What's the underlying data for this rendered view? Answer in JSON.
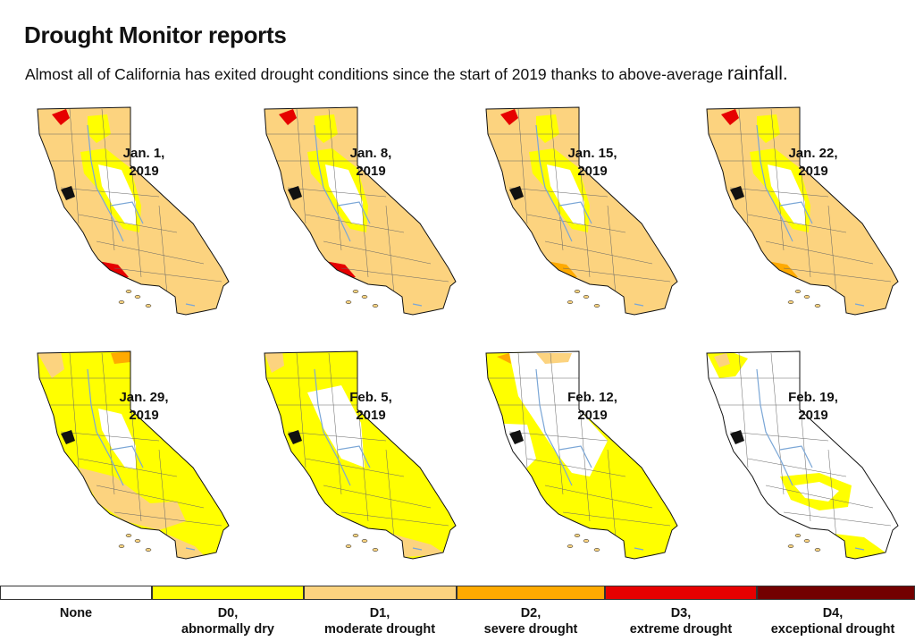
{
  "header": {
    "title": "Drought Monitor reports",
    "subtitle_main": "Almost all of California has exited drought conditions since the start of 2019 thanks to above-average",
    "subtitle_end": "rainfall."
  },
  "colors": {
    "none": "#ffffff",
    "d0": "#ffff00",
    "d1": "#fcd37f",
    "d2": "#ffaa00",
    "d3": "#e60000",
    "d4": "#730000",
    "rivers": "#7aa6d6",
    "counties": "#666666"
  },
  "maps": [
    {
      "date_line1": "Jan. 1,",
      "date_line2": "2019",
      "scenario": "mostly_d1"
    },
    {
      "date_line1": "Jan. 8,",
      "date_line2": "2019",
      "scenario": "mostly_d1"
    },
    {
      "date_line1": "Jan. 15,",
      "date_line2": "2019",
      "scenario": "mostly_d1_less"
    },
    {
      "date_line1": "Jan. 22,",
      "date_line2": "2019",
      "scenario": "mostly_d1_less"
    },
    {
      "date_line1": "Jan. 29,",
      "date_line2": "2019",
      "scenario": "half_d0"
    },
    {
      "date_line1": "Feb. 5,",
      "date_line2": "2019",
      "scenario": "mostly_d0"
    },
    {
      "date_line1": "Feb. 12,",
      "date_line2": "2019",
      "scenario": "mostly_d0_white"
    },
    {
      "date_line1": "Feb. 19,",
      "date_line2": "2019",
      "scenario": "mostly_none"
    }
  ],
  "legend": [
    {
      "line1": "None",
      "line2": "",
      "color": "#ffffff"
    },
    {
      "line1": "D0,",
      "line2": "abnormally dry",
      "color": "#ffff00"
    },
    {
      "line1": "D1,",
      "line2": "moderate drought",
      "color": "#fcd37f"
    },
    {
      "line1": "D2,",
      "line2": "severe drought",
      "color": "#ffaa00"
    },
    {
      "line1": "D3,",
      "line2": "extreme drought",
      "color": "#e60000"
    },
    {
      "line1": "D4,",
      "line2": "exceptional drought",
      "color": "#730000"
    }
  ]
}
